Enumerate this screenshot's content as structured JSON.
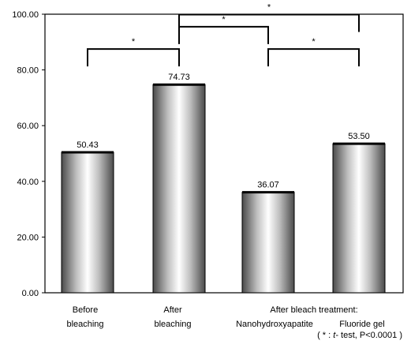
{
  "chart_data": {
    "type": "bar",
    "categories": [
      "Before bleaching",
      "After bleaching",
      "Nanohydroxyapatite",
      "Fluoride gel"
    ],
    "category_label_lines": [
      [
        "Before",
        "bleaching"
      ],
      [
        "After",
        "bleaching"
      ],
      [
        "",
        "Nanohydroxyapatite"
      ],
      [
        "",
        "Fluoride gel"
      ]
    ],
    "group_label": "After bleach treatment:",
    "values": [
      50.43,
      74.73,
      36.07,
      53.5
    ],
    "value_labels": [
      "50.43",
      "74.73",
      "36.07",
      "53.50"
    ],
    "ylim": [
      0,
      100
    ],
    "yticks": [
      0,
      20,
      40,
      60,
      80,
      100
    ],
    "ytick_labels": [
      "0.00",
      "20.00",
      "40.00",
      "60.00",
      "80.00",
      "100.00"
    ],
    "grid": false,
    "bar_style": "cylindrical gray gradient",
    "significance_brackets": [
      {
        "from": 0,
        "to": 1,
        "height": 87.5,
        "label": "*"
      },
      {
        "from": 1,
        "to": 2,
        "height": 95.5,
        "label": "*"
      },
      {
        "from": 1,
        "to": 3,
        "height": 100,
        "label": "*"
      },
      {
        "from": 2,
        "to": 3,
        "height": 87.5,
        "label": "*"
      }
    ],
    "footnote": {
      "prefix": "( * : ",
      "italic": "t",
      "suffix": "- test, P<0.0001 )"
    }
  }
}
